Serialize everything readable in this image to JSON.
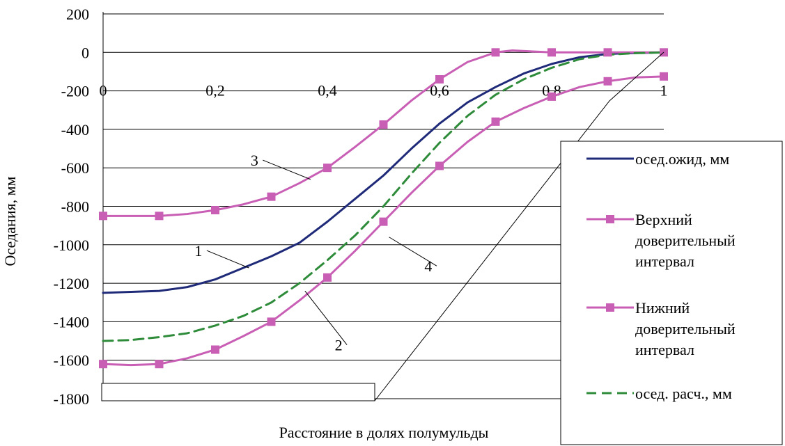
{
  "chart_data": {
    "type": "line",
    "title": "",
    "xlabel": "Расстояние в долях полумульды",
    "ylabel": "Оседания, мм",
    "xlim": [
      0,
      1
    ],
    "ylim": [
      -1800,
      200
    ],
    "x_ticks": [
      0,
      0.2,
      0.4,
      0.6,
      0.8,
      1
    ],
    "x_tick_labels": [
      "0",
      "0,2",
      "0,4",
      "0,6",
      "0,8",
      "1"
    ],
    "y_ticks": [
      200,
      0,
      -200,
      -400,
      -600,
      -800,
      -1000,
      -1200,
      -1400,
      -1600,
      -1800
    ],
    "y_tick_labels": [
      "200",
      "0",
      "-200",
      "-400",
      "-600",
      "-800",
      "-1000",
      "-1200",
      "-1400",
      "-1600",
      "-1800"
    ],
    "grid": "horizontal",
    "legend_position": "right",
    "series": [
      {
        "name": "осед.ожид, мм",
        "color": "#1f2a78",
        "style": "solid",
        "markers": false,
        "x": [
          0,
          0.05,
          0.1,
          0.15,
          0.2,
          0.25,
          0.3,
          0.35,
          0.4,
          0.45,
          0.5,
          0.55,
          0.6,
          0.65,
          0.7,
          0.75,
          0.8,
          0.85,
          0.9,
          0.95,
          1.0
        ],
        "y": [
          -1250,
          -1245,
          -1240,
          -1220,
          -1180,
          -1120,
          -1060,
          -990,
          -880,
          -760,
          -640,
          -500,
          -370,
          -260,
          -180,
          -110,
          -60,
          -25,
          -8,
          -3,
          0
        ]
      },
      {
        "name": "Верхний доверительный интервал",
        "color": "#c85fb5",
        "style": "solid",
        "markers": true,
        "marker_x": [
          0,
          0.1,
          0.2,
          0.3,
          0.4,
          0.5,
          0.6,
          0.7,
          0.8,
          0.9,
          1.0
        ],
        "x": [
          0,
          0.05,
          0.1,
          0.15,
          0.2,
          0.25,
          0.3,
          0.35,
          0.4,
          0.45,
          0.5,
          0.55,
          0.6,
          0.65,
          0.7,
          0.73,
          0.8,
          0.9,
          1.0
        ],
        "y": [
          -850,
          -850,
          -850,
          -840,
          -820,
          -790,
          -750,
          -680,
          -600,
          -490,
          -375,
          -250,
          -140,
          -50,
          0,
          10,
          0,
          0,
          0
        ]
      },
      {
        "name": "Нижний доверительный интервал",
        "color": "#c85fb5",
        "style": "solid",
        "markers": true,
        "marker_x": [
          0,
          0.1,
          0.2,
          0.3,
          0.4,
          0.5,
          0.6,
          0.7,
          0.8,
          0.9,
          1.0
        ],
        "x": [
          0,
          0.05,
          0.1,
          0.15,
          0.2,
          0.25,
          0.3,
          0.35,
          0.4,
          0.45,
          0.5,
          0.55,
          0.6,
          0.65,
          0.7,
          0.75,
          0.8,
          0.85,
          0.9,
          0.95,
          1.0
        ],
        "y": [
          -1620,
          -1625,
          -1620,
          -1590,
          -1545,
          -1475,
          -1400,
          -1290,
          -1170,
          -1030,
          -880,
          -730,
          -590,
          -465,
          -360,
          -290,
          -230,
          -180,
          -150,
          -130,
          -125
        ]
      },
      {
        "name": "осед. расч., мм",
        "color": "#2e8b3a",
        "style": "dashed",
        "markers": false,
        "x": [
          0,
          0.05,
          0.1,
          0.15,
          0.2,
          0.25,
          0.3,
          0.35,
          0.4,
          0.45,
          0.5,
          0.55,
          0.6,
          0.65,
          0.7,
          0.75,
          0.8,
          0.85,
          0.9,
          0.95,
          1.0
        ],
        "y": [
          -1500,
          -1495,
          -1480,
          -1460,
          -1420,
          -1370,
          -1300,
          -1200,
          -1080,
          -950,
          -800,
          -630,
          -470,
          -330,
          -220,
          -140,
          -80,
          -35,
          -12,
          -4,
          0
        ]
      }
    ],
    "annotations": [
      {
        "label": "1",
        "text_x": 0.17,
        "text_y": -1030,
        "target_x": 0.26,
        "target_y": -1120
      },
      {
        "label": "2",
        "text_x": 0.42,
        "text_y": -1520,
        "target_x": 0.36,
        "target_y": -1240
      },
      {
        "label": "3",
        "text_x": 0.27,
        "text_y": -560,
        "target_x": 0.37,
        "target_y": -660
      },
      {
        "label": "4",
        "text_x": 0.58,
        "text_y": -1110,
        "target_x": 0.51,
        "target_y": -960
      }
    ]
  }
}
